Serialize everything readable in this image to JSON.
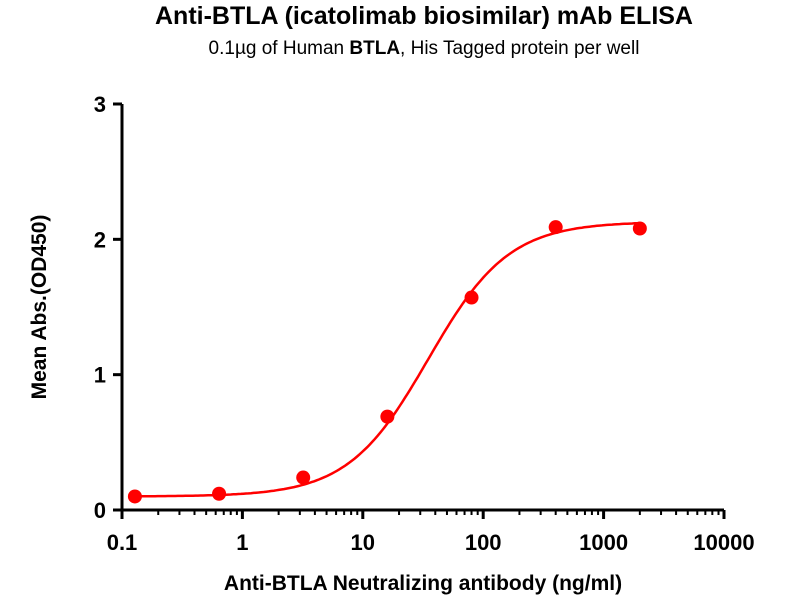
{
  "chart_data": {
    "type": "scatter",
    "title": "Anti-BTLA (icatolimab biosimilar) mAb ELISA",
    "subtitle_parts": [
      "0.1µg of Human ",
      "BTLA",
      ", His Tagged protein per well"
    ],
    "xlabel": "Anti-BTLA Neutralizing antibody (ng/ml)",
    "ylabel": "Mean Abs.(OD450)",
    "xscale": "log",
    "xlim": [
      0.1,
      10000
    ],
    "ylim": [
      0,
      3
    ],
    "xticks": [
      0.1,
      1,
      10,
      100,
      1000,
      10000
    ],
    "xtick_labels": [
      "0.1",
      "1",
      "10",
      "100",
      "1000",
      "10000"
    ],
    "yticks": [
      0,
      1,
      2,
      3
    ],
    "ytick_labels": [
      "0",
      "1",
      "2",
      "3"
    ],
    "grid": false,
    "series": [
      {
        "name": "Anti-BTLA",
        "color": "#ff0000",
        "x": [
          0.128,
          0.64,
          3.2,
          16,
          80,
          400,
          2000
        ],
        "y": [
          0.1,
          0.12,
          0.24,
          0.69,
          1.57,
          2.09,
          2.08
        ],
        "fit": {
          "model": "4PL",
          "bottom": 0.1,
          "top": 2.13,
          "ec50": 35,
          "hill": 1.3
        }
      }
    ]
  }
}
